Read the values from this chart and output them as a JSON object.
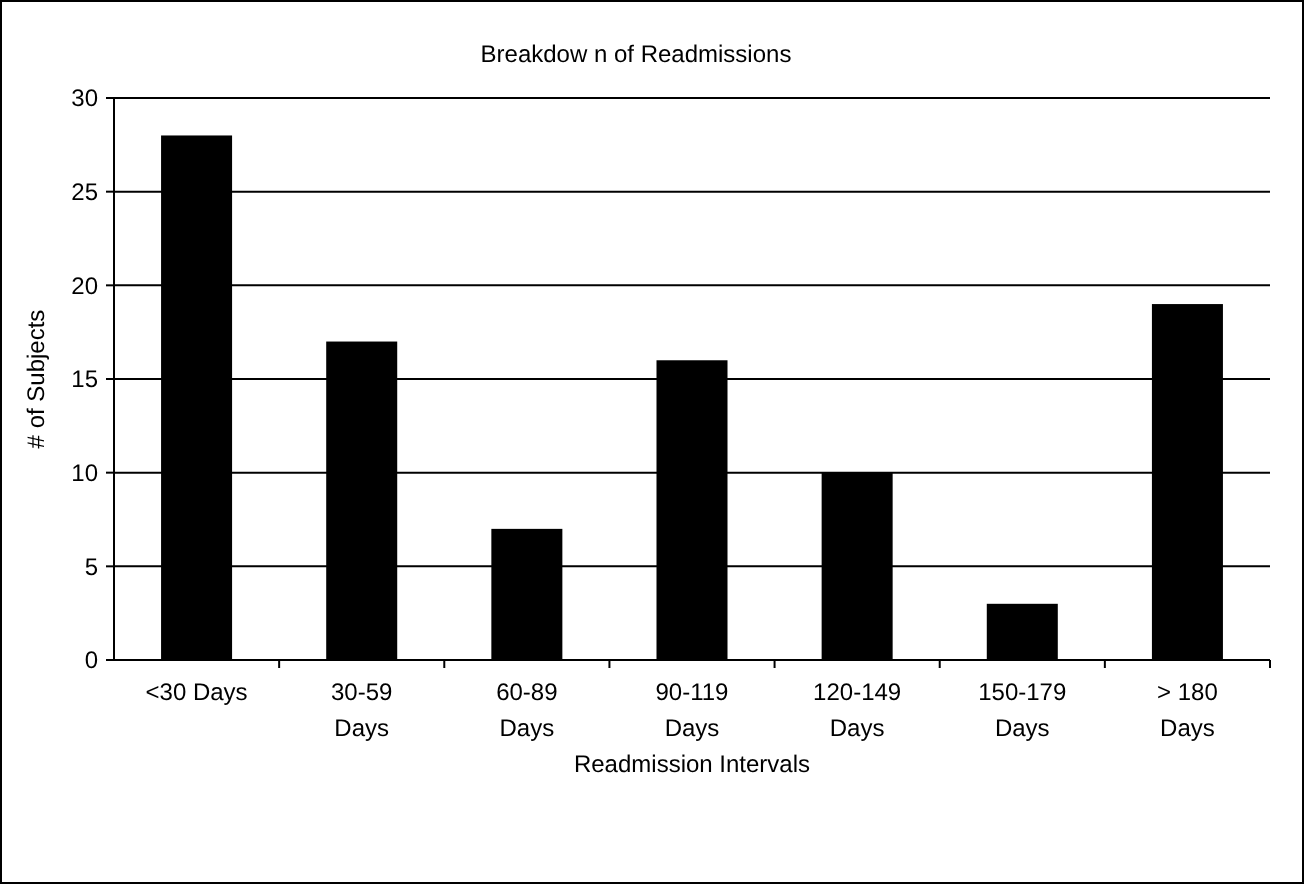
{
  "chart_data": {
    "type": "bar",
    "title": "Breakdow n of Readmissions",
    "xlabel": "Readmission Intervals",
    "ylabel": "# of Subjects",
    "categories": [
      "<30 Days",
      "30-59 Days",
      "60-89 Days",
      "90-119 Days",
      "120-149 Days",
      "150-179 Days",
      "> 180 Days"
    ],
    "values": [
      28,
      17,
      7,
      16,
      10,
      3,
      19
    ],
    "color": "#000000",
    "ylim": [
      0,
      30
    ],
    "yticks": [
      0,
      5,
      10,
      15,
      20,
      25,
      30
    ],
    "grid": "y"
  }
}
